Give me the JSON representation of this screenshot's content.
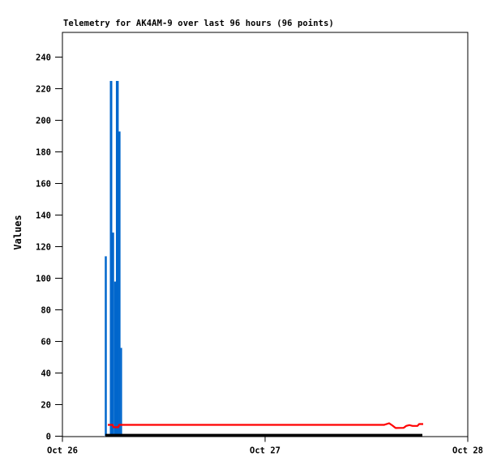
{
  "title": "Telemetry for AK4AM-9 over last 96 hours (96 points)",
  "colors": {
    "background": "#FFFFFF",
    "axis": "#000000",
    "spike_series": "#0066CC",
    "line_series_red": "#FF0000",
    "line_series_black": "#000000"
  },
  "chart_data": {
    "type": "line",
    "title": "Telemetry for AK4AM-9 over last 96 hours (96 points)",
    "xlabel": "",
    "ylabel": "Values",
    "ylim": [
      0,
      256
    ],
    "grid": false,
    "legend": false,
    "yticks": [
      0,
      20,
      40,
      60,
      80,
      100,
      120,
      140,
      160,
      180,
      200,
      220,
      240
    ],
    "xticks": [
      {
        "label": "Oct 26",
        "pos": 0
      },
      {
        "label": "Oct 27",
        "pos": 0.5
      },
      {
        "label": "Oct 28",
        "pos": 1
      }
    ],
    "series": [
      {
        "name": "blue-telemetry-spikes",
        "type": "impulse",
        "color": "#0066CC",
        "points": [
          {
            "x": 0.107,
            "v": 114,
            "w": 2.5
          },
          {
            "x": 0.12,
            "v": 225,
            "w": 3
          },
          {
            "x": 0.125,
            "v": 129,
            "w": 2.5
          },
          {
            "x": 0.13,
            "v": 98,
            "w": 2.5
          },
          {
            "x": 0.1354,
            "v": 225,
            "w": 3.5
          },
          {
            "x": 0.1408,
            "v": 193,
            "w": 2.5
          },
          {
            "x": 0.1452,
            "v": 56,
            "w": 2
          }
        ]
      },
      {
        "name": "black-telemetry-line",
        "type": "line",
        "color": "#000000",
        "stroke_width": 3,
        "points": [
          {
            "x": 0.106,
            "v": 0.8
          },
          {
            "x": 0.888,
            "v": 0.8
          }
        ]
      },
      {
        "name": "red-telemetry-line",
        "type": "line",
        "color": "#FF0000",
        "stroke_width": 2.2,
        "points": [
          {
            "x": 0.112,
            "v": 7.3
          },
          {
            "x": 0.124,
            "v": 7.3
          },
          {
            "x": 0.126,
            "v": 5.8
          },
          {
            "x": 0.138,
            "v": 5.8
          },
          {
            "x": 0.14,
            "v": 7.3
          },
          {
            "x": 0.794,
            "v": 7.3
          },
          {
            "x": 0.806,
            "v": 8.3
          },
          {
            "x": 0.814,
            "v": 6.9
          },
          {
            "x": 0.822,
            "v": 5.3
          },
          {
            "x": 0.842,
            "v": 5.4
          },
          {
            "x": 0.848,
            "v": 6.6
          },
          {
            "x": 0.856,
            "v": 7.1
          },
          {
            "x": 0.864,
            "v": 6.6
          },
          {
            "x": 0.876,
            "v": 6.6
          },
          {
            "x": 0.88,
            "v": 7.8
          },
          {
            "x": 0.89,
            "v": 7.8
          }
        ]
      }
    ]
  }
}
